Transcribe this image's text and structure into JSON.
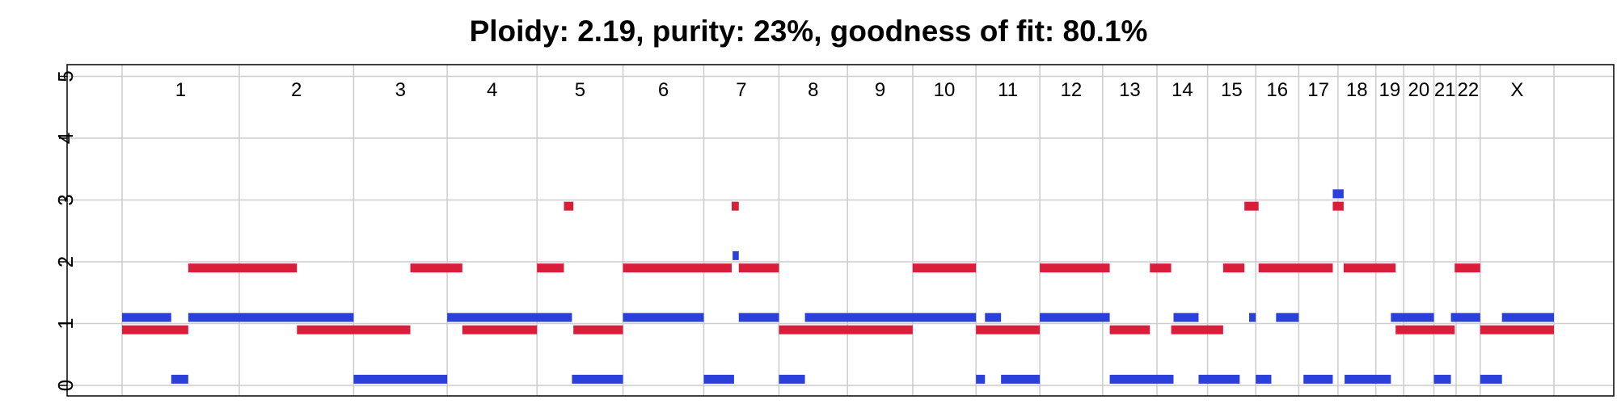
{
  "chart_data": {
    "type": "segment",
    "title": "Ploidy: 2.19, purity: 23%, goodness of fit: 80.1%",
    "ylim": [
      0,
      5
    ],
    "y_ticks": [
      0,
      1,
      2,
      3,
      4,
      5
    ],
    "grid": true,
    "chromosomes": [
      {
        "name": "1",
        "start": 0,
        "end": 248
      },
      {
        "name": "2",
        "start": 248,
        "end": 490
      },
      {
        "name": "3",
        "start": 490,
        "end": 688
      },
      {
        "name": "4",
        "start": 688,
        "end": 878
      },
      {
        "name": "5",
        "start": 878,
        "end": 1060
      },
      {
        "name": "6",
        "start": 1060,
        "end": 1231
      },
      {
        "name": "7",
        "start": 1231,
        "end": 1390
      },
      {
        "name": "8",
        "start": 1390,
        "end": 1535
      },
      {
        "name": "9",
        "start": 1535,
        "end": 1673
      },
      {
        "name": "10",
        "start": 1673,
        "end": 1807
      },
      {
        "name": "11",
        "start": 1807,
        "end": 1942
      },
      {
        "name": "12",
        "start": 1942,
        "end": 2075
      },
      {
        "name": "13",
        "start": 2075,
        "end": 2190
      },
      {
        "name": "14",
        "start": 2190,
        "end": 2297
      },
      {
        "name": "15",
        "start": 2297,
        "end": 2399
      },
      {
        "name": "16",
        "start": 2399,
        "end": 2490
      },
      {
        "name": "17",
        "start": 2490,
        "end": 2573
      },
      {
        "name": "18",
        "start": 2573,
        "end": 2653
      },
      {
        "name": "19",
        "start": 2653,
        "end": 2712
      },
      {
        "name": "20",
        "start": 2712,
        "end": 2776
      },
      {
        "name": "21",
        "start": 2776,
        "end": 2823
      },
      {
        "name": "22",
        "start": 2823,
        "end": 2874
      },
      {
        "name": "X",
        "start": 2874,
        "end": 3030
      }
    ],
    "series": [
      {
        "color": "#2b3fdb",
        "segments": [
          {
            "start": 0,
            "end": 104,
            "cn": 1.1
          },
          {
            "start": 104,
            "end": 140,
            "cn": 0.1
          },
          {
            "start": 140,
            "end": 490,
            "cn": 1.1
          },
          {
            "start": 490,
            "end": 688,
            "cn": 0.1
          },
          {
            "start": 688,
            "end": 952,
            "cn": 1.1
          },
          {
            "start": 952,
            "end": 1060,
            "cn": 0.1
          },
          {
            "start": 1060,
            "end": 1231,
            "cn": 1.1
          },
          {
            "start": 1231,
            "end": 1295,
            "cn": 0.1
          },
          {
            "start": 1292,
            "end": 1305,
            "cn": 2.1
          },
          {
            "start": 1305,
            "end": 1390,
            "cn": 1.1
          },
          {
            "start": 1390,
            "end": 1445,
            "cn": 0.1
          },
          {
            "start": 1445,
            "end": 1807,
            "cn": 1.1
          },
          {
            "start": 1807,
            "end": 1826,
            "cn": 0.1
          },
          {
            "start": 1826,
            "end": 1860,
            "cn": 1.1
          },
          {
            "start": 1860,
            "end": 1942,
            "cn": 0.1
          },
          {
            "start": 1942,
            "end": 2090,
            "cn": 1.1
          },
          {
            "start": 2090,
            "end": 2225,
            "cn": 0.1
          },
          {
            "start": 2225,
            "end": 2278,
            "cn": 1.1
          },
          {
            "start": 2278,
            "end": 2365,
            "cn": 0.1
          },
          {
            "start": 2385,
            "end": 2399,
            "cn": 1.1
          },
          {
            "start": 2399,
            "end": 2432,
            "cn": 0.1
          },
          {
            "start": 2442,
            "end": 2490,
            "cn": 1.1
          },
          {
            "start": 2500,
            "end": 2562,
            "cn": 0.1
          },
          {
            "start": 2562,
            "end": 2585,
            "cn": 3.1
          },
          {
            "start": 2587,
            "end": 2685,
            "cn": 0.1
          },
          {
            "start": 2685,
            "end": 2776,
            "cn": 1.1
          },
          {
            "start": 2776,
            "end": 2812,
            "cn": 0.1
          },
          {
            "start": 2812,
            "end": 2874,
            "cn": 1.1
          },
          {
            "start": 2874,
            "end": 2920,
            "cn": 0.1
          },
          {
            "start": 2920,
            "end": 3030,
            "cn": 1.1
          }
        ]
      },
      {
        "color": "#d91e3b",
        "segments": [
          {
            "start": 0,
            "end": 140,
            "cn": 0.9
          },
          {
            "start": 140,
            "end": 370,
            "cn": 1.9
          },
          {
            "start": 370,
            "end": 610,
            "cn": 0.9
          },
          {
            "start": 610,
            "end": 720,
            "cn": 1.9
          },
          {
            "start": 720,
            "end": 878,
            "cn": 0.9
          },
          {
            "start": 878,
            "end": 935,
            "cn": 1.9
          },
          {
            "start": 935,
            "end": 955,
            "cn": 2.9
          },
          {
            "start": 955,
            "end": 1060,
            "cn": 0.9
          },
          {
            "start": 1060,
            "end": 1290,
            "cn": 1.9
          },
          {
            "start": 1290,
            "end": 1305,
            "cn": 2.9
          },
          {
            "start": 1305,
            "end": 1390,
            "cn": 1.9
          },
          {
            "start": 1390,
            "end": 1673,
            "cn": 0.9
          },
          {
            "start": 1673,
            "end": 1807,
            "cn": 1.9
          },
          {
            "start": 1807,
            "end": 1942,
            "cn": 0.9
          },
          {
            "start": 1942,
            "end": 2090,
            "cn": 1.9
          },
          {
            "start": 2090,
            "end": 2175,
            "cn": 0.9
          },
          {
            "start": 2175,
            "end": 2220,
            "cn": 1.9
          },
          {
            "start": 2220,
            "end": 2330,
            "cn": 0.9
          },
          {
            "start": 2330,
            "end": 2375,
            "cn": 1.9
          },
          {
            "start": 2375,
            "end": 2405,
            "cn": 2.9
          },
          {
            "start": 2405,
            "end": 2562,
            "cn": 1.9
          },
          {
            "start": 2562,
            "end": 2585,
            "cn": 2.9
          },
          {
            "start": 2585,
            "end": 2695,
            "cn": 1.9
          },
          {
            "start": 2695,
            "end": 2820,
            "cn": 0.9
          },
          {
            "start": 2820,
            "end": 2874,
            "cn": 1.9
          },
          {
            "start": 2874,
            "end": 3030,
            "cn": 0.9
          }
        ]
      }
    ]
  }
}
